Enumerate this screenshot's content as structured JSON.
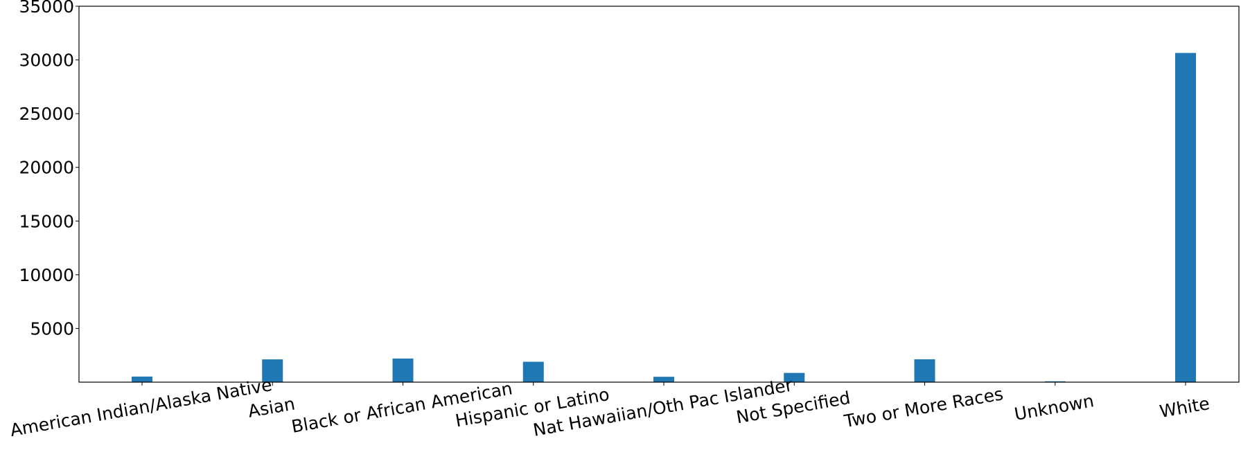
{
  "chart_data": {
    "type": "bar",
    "title": "",
    "xlabel": "",
    "ylabel": "",
    "categories": [
      "American Indian/Alaska Native",
      "Asian",
      "Black or African American",
      "Hispanic or Latino",
      "Nat Hawaiian/Oth Pac Islander",
      "Not Specified",
      "Two or More Races",
      "Unknown",
      "White"
    ],
    "values": [
      520,
      2120,
      2200,
      1900,
      500,
      860,
      2130,
      80,
      30650
    ],
    "ylim": [
      0,
      35000
    ],
    "yticks": [
      5000,
      10000,
      15000,
      20000,
      25000,
      30000,
      35000
    ],
    "ytick_labels": [
      "5000",
      "10000",
      "15000",
      "20000",
      "25000",
      "30000",
      "35000"
    ],
    "grid": false,
    "legend": "none",
    "colors": {
      "bar": "#1f77b4"
    }
  }
}
